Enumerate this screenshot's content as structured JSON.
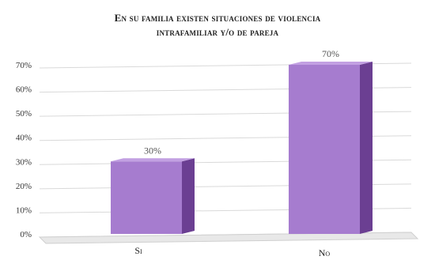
{
  "chart_data": {
    "type": "bar",
    "title_lines": [
      "En su familia existen situaciones de violencia",
      "intrafamiliar y/o de pareja"
    ],
    "categories": [
      "Si",
      "No"
    ],
    "values": [
      30,
      70
    ],
    "data_labels": [
      "30%",
      "70%"
    ],
    "ylim": [
      0,
      70
    ],
    "ytick_labels": [
      "0%",
      "10%",
      "20%",
      "30%",
      "40%",
      "50%",
      "60%",
      "70%"
    ],
    "grid": true,
    "legend": "none",
    "style": "3d",
    "colors": {
      "bar_front": "#A67CCF",
      "bar_top": "#C2A0E2",
      "bar_side": "#6B3F92",
      "grid": "#D9D9D9",
      "floor": "#E8E8E8"
    }
  }
}
